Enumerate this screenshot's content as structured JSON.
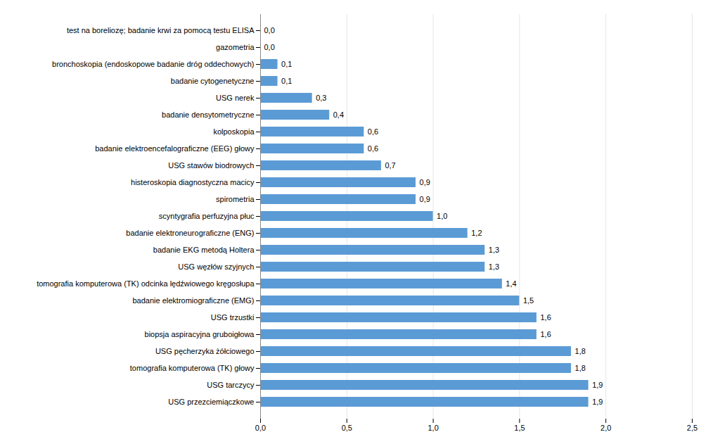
{
  "chart_data": {
    "type": "bar",
    "orientation": "horizontal",
    "categories": [
      "USG przezciemiączkowe",
      "USG tarczycy",
      "tomografia komputerowa (TK) głowy",
      "USG pęcherzyka żółciowego",
      "biopsja aspiracyjna gruboigłowa",
      "USG trzustki",
      "badanie elektromiograficzne (EMG)",
      "tomografia komputerowa (TK) odcinka lędźwiowego kręgosłupa",
      "USG węzłów szyjnych",
      "badanie EKG metodą Holtera",
      "badanie elektroneurograficzne (ENG)",
      "scyntygrafia perfuzyjna płuc",
      "spirometria",
      "histeroskopia diagnostyczna macicy",
      "USG stawów biodrowych",
      "badanie elektroencefalograficzne (EEG) głowy",
      "kolposkopia",
      "badanie densytometryczne",
      "USG nerek",
      "badanie cytogenetyczne",
      "bronchoskopia (endoskopowe badanie dróg oddechowych)",
      "gazometria",
      "test na boreliozę; badanie krwi za pomocą testu ELISA"
    ],
    "values": [
      1.9,
      1.9,
      1.8,
      1.8,
      1.6,
      1.6,
      1.5,
      1.4,
      1.3,
      1.3,
      1.2,
      1.0,
      0.9,
      0.9,
      0.7,
      0.6,
      0.6,
      0.4,
      0.3,
      0.1,
      0.1,
      0.0,
      0.0
    ],
    "value_labels": [
      "1,9",
      "1,9",
      "1,8",
      "1,8",
      "1,6",
      "1,6",
      "1,5",
      "1,4",
      "1,3",
      "1,3",
      "1,2",
      "1,0",
      "0,9",
      "0,9",
      "0,7",
      "0,6",
      "0,6",
      "0,4",
      "0,3",
      "0,1",
      "0,1",
      "0,0",
      "0,0"
    ],
    "data_labels": true,
    "color": "#5B9BD5",
    "xlim": [
      0,
      2.5
    ],
    "xticks": [
      {
        "value": 0.0,
        "label": "0,0"
      },
      {
        "value": 0.5,
        "label": "0,5"
      },
      {
        "value": 1.0,
        "label": "1,0"
      },
      {
        "value": 1.5,
        "label": "1,5"
      },
      {
        "value": 2.0,
        "label": "2,0"
      },
      {
        "value": 2.5,
        "label": "2,5"
      }
    ],
    "grid": true
  }
}
